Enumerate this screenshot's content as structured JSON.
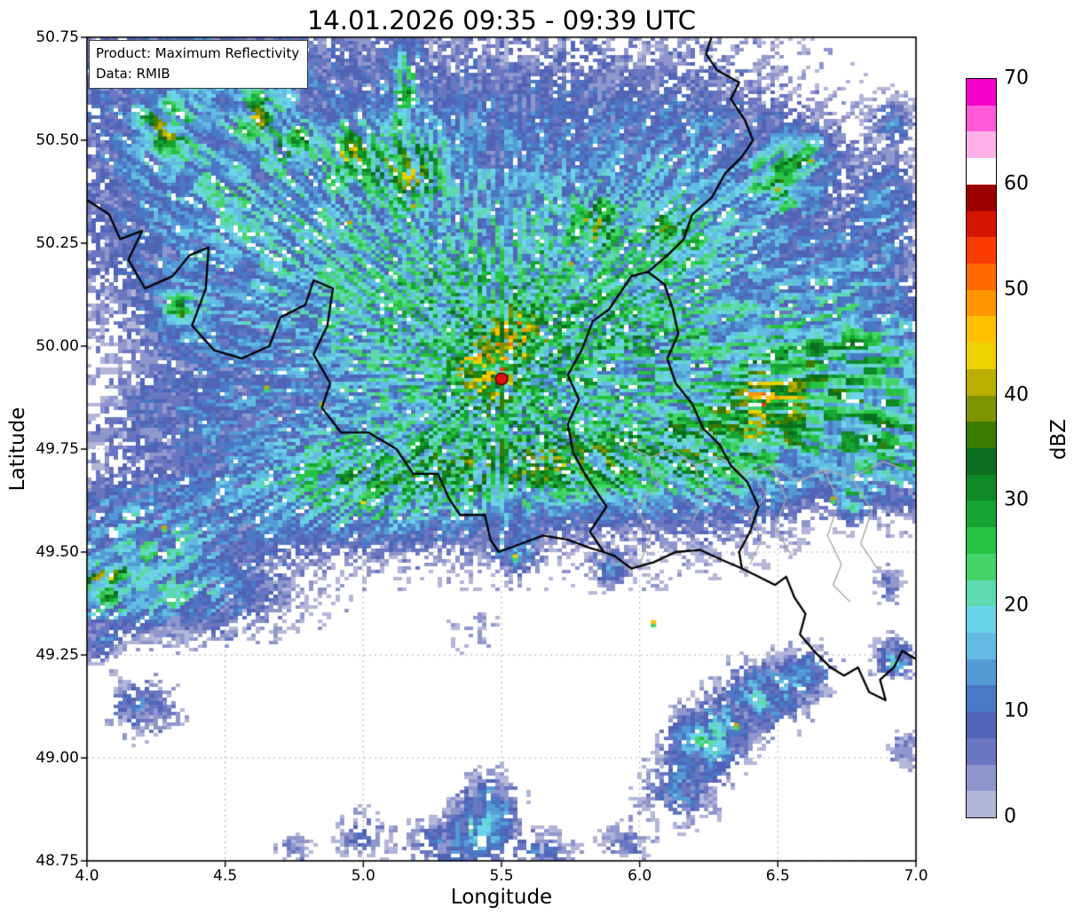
{
  "info_box": {
    "product_line": "Product: Maximum Reflectivity",
    "data_line": "Data: RMIB"
  },
  "chart_data": {
    "type": "heatmap",
    "title": "14.01.2026 09:35 - 09:39 UTC",
    "xlabel": "Longitude",
    "ylabel": "Latitude",
    "xlim": [
      4.0,
      7.0
    ],
    "ylim": [
      48.75,
      50.75
    ],
    "x_ticks": [
      4.0,
      4.5,
      5.0,
      5.5,
      6.0,
      6.5,
      7.0
    ],
    "x_tick_labels": [
      "4.0",
      "4.5",
      "5.0",
      "5.5",
      "6.0",
      "6.5",
      "7.0"
    ],
    "y_ticks": [
      48.75,
      49.0,
      49.25,
      49.5,
      49.75,
      50.0,
      50.25,
      50.5,
      50.75
    ],
    "y_tick_labels": [
      "48.75",
      "49.00",
      "49.25",
      "49.50",
      "49.75",
      "50.00",
      "50.25",
      "50.50",
      "50.75"
    ],
    "grid": true,
    "colorbar": {
      "label": "dBZ",
      "min": 0,
      "max": 70,
      "ticks": [
        0,
        10,
        20,
        30,
        40,
        50,
        60,
        70
      ],
      "step_dbz": 2.5,
      "colors": [
        "#b2b6d8",
        "#8e96cc",
        "#6a76c0",
        "#5264b6",
        "#4a78c4",
        "#549ad4",
        "#62bce2",
        "#6cd4e8",
        "#5ed8ae",
        "#44d46a",
        "#26c244",
        "#16a432",
        "#0f8827",
        "#0b6e1e",
        "#3a7c00",
        "#7e9400",
        "#bcae00",
        "#ecd200",
        "#ffc000",
        "#ff9600",
        "#ff6a00",
        "#f83c00",
        "#d41400",
        "#9c0000",
        "#ffffff",
        "#ffb2e8",
        "#ff5ad8",
        "#f500cc"
      ]
    },
    "radar_site": {
      "lon": 5.5,
      "lat": 49.92
    },
    "echo_regions": [
      {
        "lon": 5.3,
        "lat": 50.45,
        "rlon": 1.05,
        "rlat": 0.42,
        "dbz": 8
      },
      {
        "lon": 4.6,
        "lat": 50.2,
        "rlon": 0.65,
        "rlat": 0.38,
        "dbz": 7
      },
      {
        "lon": 5.9,
        "lat": 50.05,
        "rlon": 0.75,
        "rlat": 0.45,
        "dbz": 8
      },
      {
        "lon": 5.2,
        "lat": 49.98,
        "rlon": 0.75,
        "rlat": 0.33,
        "dbz": 8
      },
      {
        "lon": 6.3,
        "lat": 50.33,
        "rlon": 0.45,
        "rlat": 0.33,
        "dbz": 7
      },
      {
        "lon": 4.4,
        "lat": 50.55,
        "rlon": 0.45,
        "rlat": 0.28,
        "dbz": 8
      },
      {
        "lon": 5.5,
        "lat": 49.95,
        "rlon": 0.5,
        "rlat": 0.3,
        "dbz": 8
      },
      {
        "lon": 6.15,
        "lat": 49.9,
        "rlon": 0.35,
        "rlat": 0.3,
        "dbz": 7
      },
      {
        "lon": 4.2,
        "lat": 50.68,
        "rlon": 0.28,
        "rlat": 0.09,
        "dbz": 5
      },
      {
        "lon": 6.9,
        "lat": 50.33,
        "rlon": 0.12,
        "rlat": 0.14,
        "dbz": 9
      },
      {
        "lon": 6.92,
        "lat": 50.55,
        "rlon": 0.08,
        "rlat": 0.05,
        "dbz": 8
      },
      {
        "lon": 4.27,
        "lat": 50.53,
        "rlon": 0.09,
        "rlat": 0.06,
        "dbz": 18
      },
      {
        "lon": 4.62,
        "lat": 50.56,
        "rlon": 0.07,
        "rlat": 0.05,
        "dbz": 16
      },
      {
        "lon": 5.15,
        "lat": 50.65,
        "rlon": 0.05,
        "rlat": 0.11,
        "dbz": 15
      },
      {
        "lon": 5.15,
        "lat": 50.44,
        "rlon": 0.13,
        "rlat": 0.09,
        "dbz": 17
      },
      {
        "lon": 4.95,
        "lat": 50.47,
        "rlon": 0.08,
        "rlat": 0.06,
        "dbz": 15
      },
      {
        "lon": 4.35,
        "lat": 50.08,
        "rlon": 0.09,
        "rlat": 0.06,
        "dbz": 16
      },
      {
        "lon": 5.55,
        "lat": 50.04,
        "rlon": 0.07,
        "rlat": 0.05,
        "dbz": 16
      },
      {
        "lon": 5.85,
        "lat": 50.3,
        "rlon": 0.09,
        "rlat": 0.06,
        "dbz": 13
      },
      {
        "lon": 6.12,
        "lat": 50.28,
        "rlon": 0.07,
        "rlat": 0.05,
        "dbz": 14
      },
      {
        "lon": 6.52,
        "lat": 50.4,
        "rlon": 0.11,
        "rlat": 0.09,
        "dbz": 14
      },
      {
        "lon": 5.45,
        "lat": 49.93,
        "rlon": 0.11,
        "rlat": 0.08,
        "dbz": 15
      },
      {
        "lon": 4.75,
        "lat": 50.5,
        "rlon": 0.06,
        "rlat": 0.05,
        "dbz": 14
      },
      {
        "lon": 5.0,
        "lat": 49.66,
        "rlon": 0.5,
        "rlat": 0.14,
        "dbz": 17
      },
      {
        "lon": 5.75,
        "lat": 49.7,
        "rlon": 0.45,
        "rlat": 0.1,
        "dbz": 15
      },
      {
        "lon": 6.45,
        "lat": 49.76,
        "rlon": 0.4,
        "rlat": 0.12,
        "dbz": 13
      },
      {
        "lon": 6.78,
        "lat": 49.95,
        "rlon": 0.33,
        "rlat": 0.18,
        "dbz": 20
      },
      {
        "lon": 6.95,
        "lat": 49.74,
        "rlon": 0.22,
        "rlat": 0.13,
        "dbz": 15
      },
      {
        "lon": 6.45,
        "lat": 49.88,
        "rlon": 0.14,
        "rlat": 0.09,
        "dbz": 15
      },
      {
        "lon": 4.2,
        "lat": 49.52,
        "rlon": 0.4,
        "rlat": 0.16,
        "dbz": 14
      },
      {
        "lon": 4.05,
        "lat": 49.42,
        "rlon": 0.1,
        "rlat": 0.06,
        "dbz": 16
      },
      {
        "lon": 4.3,
        "lat": 49.38,
        "rlon": 0.45,
        "rlat": 0.09,
        "dbz": 9
      },
      {
        "lon": 4.3,
        "lat": 49.82,
        "rlon": 0.35,
        "rlat": 0.1,
        "dbz": 5
      },
      {
        "lon": 6.35,
        "lat": 49.65,
        "rlon": 0.28,
        "rlat": 0.13,
        "dbz": 4
      },
      {
        "lon": 5.55,
        "lat": 49.5,
        "rlon": 0.07,
        "rlat": 0.05,
        "dbz": 12
      },
      {
        "lon": 5.9,
        "lat": 49.46,
        "rlon": 0.06,
        "rlat": 0.04,
        "dbz": 10
      },
      {
        "lon": 6.77,
        "lat": 49.62,
        "rlon": 0.05,
        "rlat": 0.04,
        "dbz": 16
      },
      {
        "lon": 6.9,
        "lat": 49.42,
        "rlon": 0.05,
        "rlat": 0.04,
        "dbz": 8
      },
      {
        "lon": 5.4,
        "lat": 49.3,
        "rlon": 0.09,
        "rlat": 0.05,
        "dbz": 4
      },
      {
        "lon": 6.25,
        "lat": 49.05,
        "rlon": 0.14,
        "rlat": 0.08,
        "dbz": 16
      },
      {
        "lon": 6.45,
        "lat": 49.15,
        "rlon": 0.14,
        "rlat": 0.08,
        "dbz": 15
      },
      {
        "lon": 6.62,
        "lat": 49.21,
        "rlon": 0.09,
        "rlat": 0.06,
        "dbz": 10
      },
      {
        "lon": 6.15,
        "lat": 48.92,
        "rlon": 0.14,
        "rlat": 0.08,
        "dbz": 9
      },
      {
        "lon": 6.95,
        "lat": 49.02,
        "rlon": 0.06,
        "rlat": 0.05,
        "dbz": 7
      },
      {
        "lon": 6.92,
        "lat": 49.24,
        "rlon": 0.07,
        "rlat": 0.05,
        "dbz": 13
      },
      {
        "lon": 5.45,
        "lat": 48.86,
        "rlon": 0.11,
        "rlat": 0.09,
        "dbz": 15
      },
      {
        "lon": 5.3,
        "lat": 48.79,
        "rlon": 0.14,
        "rlat": 0.07,
        "dbz": 8
      },
      {
        "lon": 5.0,
        "lat": 48.81,
        "rlon": 0.11,
        "rlat": 0.06,
        "dbz": 7
      },
      {
        "lon": 5.65,
        "lat": 48.77,
        "rlon": 0.11,
        "rlat": 0.05,
        "dbz": 8
      },
      {
        "lon": 5.95,
        "lat": 48.79,
        "rlon": 0.09,
        "rlat": 0.05,
        "dbz": 7
      },
      {
        "lon": 4.75,
        "lat": 48.78,
        "rlon": 0.06,
        "rlat": 0.04,
        "dbz": 6
      },
      {
        "lon": 4.2,
        "lat": 49.12,
        "rlon": 0.13,
        "rlat": 0.07,
        "dbz": 9
      },
      {
        "lon": 4.05,
        "lat": 49.27,
        "rlon": 0.06,
        "rlat": 0.04,
        "dbz": 7
      },
      {
        "lon": 6.75,
        "lat": 50.18,
        "rlon": 0.15,
        "rlat": 0.1,
        "dbz": 6
      },
      {
        "lon": 6.6,
        "lat": 50.47,
        "rlon": 0.12,
        "rlat": 0.06,
        "dbz": 9
      }
    ],
    "specks": [
      [
        4.65,
        49.9,
        42
      ],
      [
        5.0,
        49.62,
        44
      ],
      [
        5.35,
        49.93,
        41
      ],
      [
        4.85,
        49.86,
        40
      ],
      [
        5.55,
        49.49,
        43
      ],
      [
        6.05,
        49.33,
        45
      ],
      [
        5.18,
        50.34,
        40
      ],
      [
        6.5,
        50.38,
        41
      ],
      [
        6.62,
        50.45,
        40
      ],
      [
        5.75,
        50.2,
        40
      ],
      [
        6.7,
        49.63,
        40
      ],
      [
        4.28,
        49.56,
        40
      ],
      [
        6.35,
        49.08,
        42
      ],
      [
        5.7,
        49.7,
        41
      ],
      [
        4.95,
        50.3,
        40
      ]
    ]
  },
  "map_borders": {
    "country_color": "#000000",
    "region_color": "#aaaaaa",
    "country": [
      [
        [
          4.0,
          50.355
        ],
        [
          4.08,
          50.32
        ],
        [
          4.12,
          50.26
        ],
        [
          4.2,
          50.28
        ],
        [
          4.15,
          50.21
        ],
        [
          4.21,
          50.14
        ],
        [
          4.31,
          50.17
        ],
        [
          4.37,
          50.22
        ],
        [
          4.44,
          50.24
        ],
        [
          4.43,
          50.14
        ],
        [
          4.38,
          50.05
        ],
        [
          4.46,
          49.99
        ],
        [
          4.56,
          49.97
        ],
        [
          4.66,
          50.0
        ],
        [
          4.7,
          50.07
        ],
        [
          4.79,
          50.1
        ],
        [
          4.82,
          50.16
        ],
        [
          4.89,
          50.14
        ],
        [
          4.87,
          50.05
        ],
        [
          4.82,
          49.98
        ],
        [
          4.88,
          49.91
        ],
        [
          4.85,
          49.85
        ],
        [
          4.92,
          49.79
        ],
        [
          5.02,
          49.79
        ],
        [
          5.12,
          49.75
        ],
        [
          5.18,
          49.69
        ],
        [
          5.27,
          49.69
        ],
        [
          5.31,
          49.63
        ],
        [
          5.35,
          49.59
        ],
        [
          5.44,
          49.59
        ],
        [
          5.46,
          49.53
        ],
        [
          5.49,
          49.5
        ],
        [
          5.57,
          49.52
        ],
        [
          5.65,
          49.54
        ],
        [
          5.74,
          49.53
        ],
        [
          5.82,
          49.51
        ],
        [
          5.87,
          49.5
        ]
      ],
      [
        [
          5.87,
          49.5
        ],
        [
          5.82,
          49.55
        ],
        [
          5.88,
          49.61
        ],
        [
          5.81,
          49.68
        ],
        [
          5.76,
          49.74
        ],
        [
          5.74,
          49.81
        ],
        [
          5.78,
          49.87
        ],
        [
          5.74,
          49.93
        ],
        [
          5.79,
          49.99
        ],
        [
          5.83,
          50.06
        ],
        [
          5.89,
          50.09
        ],
        [
          5.93,
          50.13
        ],
        [
          5.97,
          50.17
        ],
        [
          6.03,
          50.18
        ],
        [
          6.09,
          50.15
        ],
        [
          6.12,
          50.09
        ],
        [
          6.14,
          50.03
        ],
        [
          6.1,
          49.97
        ],
        [
          6.13,
          49.91
        ],
        [
          6.19,
          49.86
        ],
        [
          6.23,
          49.8
        ],
        [
          6.29,
          49.76
        ],
        [
          6.33,
          49.71
        ],
        [
          6.39,
          49.67
        ],
        [
          6.43,
          49.61
        ],
        [
          6.4,
          49.55
        ],
        [
          6.36,
          49.5
        ],
        [
          6.37,
          49.46
        ],
        [
          6.3,
          49.48
        ],
        [
          6.22,
          49.505
        ],
        [
          6.13,
          49.5
        ],
        [
          6.05,
          49.475
        ],
        [
          5.97,
          49.46
        ],
        [
          5.91,
          49.49
        ],
        [
          5.87,
          49.5
        ]
      ],
      [
        [
          6.03,
          50.18
        ],
        [
          6.1,
          50.22
        ],
        [
          6.16,
          50.26
        ],
        [
          6.19,
          50.32
        ],
        [
          6.26,
          50.36
        ],
        [
          6.31,
          50.42
        ],
        [
          6.37,
          50.46
        ],
        [
          6.41,
          50.5
        ],
        [
          6.38,
          50.55
        ],
        [
          6.33,
          50.6
        ],
        [
          6.36,
          50.64
        ],
        [
          6.28,
          50.67
        ],
        [
          6.24,
          50.71
        ],
        [
          6.26,
          50.75
        ]
      ],
      [
        [
          6.37,
          49.46
        ],
        [
          6.43,
          49.44
        ],
        [
          6.49,
          49.42
        ],
        [
          6.53,
          49.44
        ],
        [
          6.56,
          49.39
        ],
        [
          6.6,
          49.35
        ],
        [
          6.58,
          49.3
        ],
        [
          6.63,
          49.26
        ],
        [
          6.69,
          49.22
        ],
        [
          6.74,
          49.2
        ],
        [
          6.79,
          49.22
        ],
        [
          6.83,
          49.16
        ],
        [
          6.89,
          49.14
        ],
        [
          6.87,
          49.19
        ],
        [
          6.92,
          49.22
        ],
        [
          6.95,
          49.26
        ],
        [
          7.0,
          49.24
        ]
      ]
    ],
    "region": [
      [
        [
          5.95,
          49.76
        ],
        [
          6.04,
          49.73
        ],
        [
          6.12,
          49.75
        ],
        [
          6.2,
          49.71
        ],
        [
          6.29,
          49.73
        ],
        [
          6.38,
          49.69
        ],
        [
          6.48,
          49.71
        ],
        [
          6.57,
          49.67
        ],
        [
          6.67,
          49.7
        ],
        [
          6.77,
          49.68
        ],
        [
          6.88,
          49.72
        ],
        [
          6.96,
          49.7
        ]
      ],
      [
        [
          6.0,
          49.47
        ],
        [
          6.04,
          49.54
        ],
        [
          5.99,
          49.61
        ],
        [
          6.07,
          49.67
        ],
        [
          6.02,
          49.73
        ]
      ],
      [
        [
          6.4,
          49.47
        ],
        [
          6.44,
          49.53
        ],
        [
          6.4,
          49.59
        ],
        [
          6.46,
          49.64
        ],
        [
          6.41,
          49.69
        ]
      ],
      [
        [
          6.48,
          49.71
        ],
        [
          6.53,
          49.63
        ],
        [
          6.49,
          49.56
        ],
        [
          6.55,
          49.49
        ]
      ],
      [
        [
          6.67,
          49.7
        ],
        [
          6.72,
          49.62
        ],
        [
          6.68,
          49.54
        ],
        [
          6.73,
          49.47
        ],
        [
          6.7,
          49.42
        ],
        [
          6.76,
          49.38
        ]
      ],
      [
        [
          6.2,
          49.71
        ],
        [
          6.23,
          49.63
        ],
        [
          6.19,
          49.57
        ]
      ],
      [
        [
          6.77,
          49.68
        ],
        [
          6.84,
          49.6
        ],
        [
          6.8,
          49.52
        ],
        [
          6.86,
          49.46
        ]
      ]
    ]
  },
  "style": {
    "background": "#ffffff",
    "grid_color": "#9a9a9a",
    "frame_color": "#000000",
    "marker_fill": "#dd1111",
    "marker_edge": "#7a0b0b"
  }
}
